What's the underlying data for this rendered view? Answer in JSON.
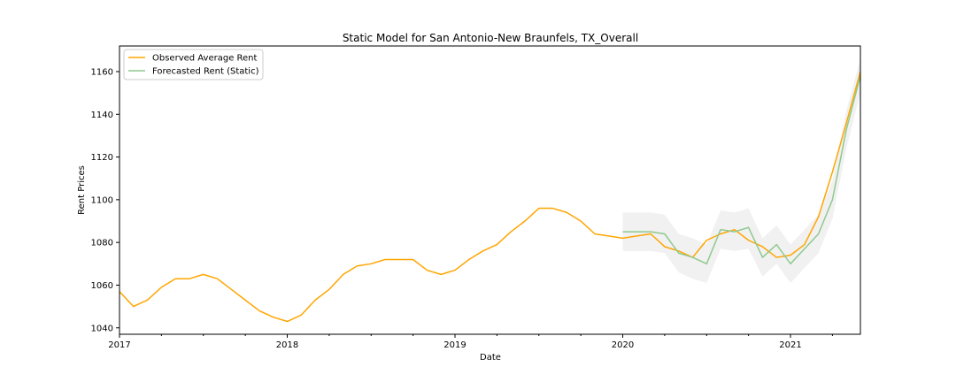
{
  "chart_data": {
    "type": "line",
    "title": "Static Model for San Antonio-New Braunfels, TX_Overall",
    "xlabel": "Date",
    "ylabel": "Rent Prices",
    "xlim": [
      2017.0,
      2021.4167
    ],
    "ylim": [
      1037,
      1172
    ],
    "x_ticks": [
      {
        "value": 2017,
        "label": "2017"
      },
      {
        "value": 2018,
        "label": "2018"
      },
      {
        "value": 2019,
        "label": "2019"
      },
      {
        "value": 2020,
        "label": "2020"
      },
      {
        "value": 2021,
        "label": "2021"
      }
    ],
    "y_ticks": [
      1040,
      1060,
      1080,
      1100,
      1120,
      1140,
      1160
    ],
    "legend": {
      "position": "top-left",
      "entries": [
        "Observed Average Rent",
        "Forecasted Rent (Static)"
      ]
    },
    "series": [
      {
        "name": "Observed Average Rent",
        "color": "#ffa500",
        "start": "2017-01",
        "values": [
          1057,
          1050,
          1053,
          1059,
          1063,
          1063,
          1065,
          1063,
          1058,
          1053,
          1048,
          1045,
          1043,
          1046,
          1053,
          1058,
          1065,
          1069,
          1070,
          1072,
          1072,
          1072,
          1067,
          1065,
          1067,
          1072,
          1076,
          1079,
          1085,
          1090,
          1096,
          1096,
          1094,
          1090,
          1084,
          1083,
          1082,
          1083,
          1084,
          1078,
          1076,
          1073,
          1081,
          1084,
          1086,
          1081,
          1078,
          1073,
          1074,
          1079,
          1092,
          1113,
          1136,
          1160
        ]
      },
      {
        "name": "Forecasted Rent (Static)",
        "color": "#8fc98f",
        "start": "2020-01",
        "values": [
          1085,
          1085,
          1085,
          1084,
          1075,
          1073,
          1070,
          1086,
          1085,
          1087,
          1073,
          1079,
          1070,
          1077,
          1084,
          1100,
          1133,
          1158
        ]
      }
    ],
    "confidence_band": {
      "series": "Forecasted Rent (Static)",
      "color": "#e6e6e6",
      "start": "2020-01",
      "lower": [
        1076,
        1076,
        1076,
        1075,
        1066,
        1063,
        1061,
        1077,
        1076,
        1077,
        1064,
        1070,
        1061,
        1068,
        1075,
        1091,
        1124,
        1150
      ],
      "upper": [
        1094,
        1094,
        1094,
        1093,
        1084,
        1082,
        1079,
        1095,
        1094,
        1096,
        1082,
        1088,
        1079,
        1086,
        1093,
        1109,
        1142,
        1166
      ]
    }
  }
}
